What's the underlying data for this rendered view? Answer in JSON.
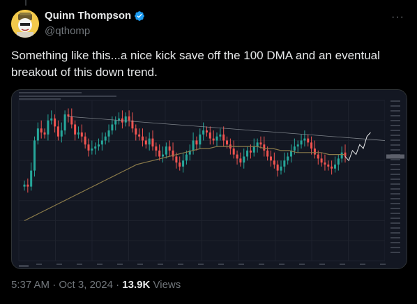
{
  "author": {
    "name": "Quinn Thompson",
    "handle": "@qthomp",
    "verified": true,
    "avatar_icon": "avatar-bitcoin-icon"
  },
  "tweet": {
    "text": "Something like this...a nice kick save off the 100 DMA and an eventual breakout of this down trend.",
    "time": "5:37 AM",
    "date": "Oct 3, 2024",
    "views_count": "13.9K",
    "views_label": "Views"
  },
  "colors": {
    "up": "#26a69a",
    "down": "#ef5350",
    "ma": "#8a7a4a",
    "trend": "#9aa0a6",
    "background": "#131722"
  },
  "chart_data": {
    "type": "candlestick",
    "title": "",
    "xlabel": "",
    "ylabel": "",
    "legend": "top-left",
    "grid": true,
    "approximate_close_series": [
      38,
      37,
      45,
      60,
      66,
      64,
      63,
      70,
      71,
      67,
      62,
      65,
      73,
      72,
      68,
      63,
      64,
      62,
      58,
      55,
      56,
      57,
      58,
      60,
      62,
      65,
      68,
      70,
      71,
      69,
      72,
      70,
      66,
      63,
      62,
      60,
      58,
      61,
      57,
      55,
      52,
      53,
      57,
      55,
      52,
      49,
      47,
      50,
      53,
      55,
      60,
      58,
      63,
      65,
      64,
      61,
      60,
      62,
      63,
      60,
      58,
      56,
      53,
      51,
      49,
      52,
      55,
      54,
      57,
      59,
      58,
      55,
      52,
      50,
      48,
      45,
      47,
      50,
      52,
      55,
      57,
      58,
      60,
      61,
      59,
      56,
      53,
      51,
      49,
      48,
      47,
      46,
      48,
      51,
      54,
      52
    ],
    "moving_average_100": [
      20,
      22,
      24,
      26,
      28,
      30,
      32,
      34,
      36,
      38,
      40,
      42,
      44,
      46,
      48,
      49,
      50,
      51,
      52,
      53,
      54,
      55,
      56,
      56,
      57,
      57,
      57,
      57,
      57,
      57,
      56,
      56,
      55,
      55,
      54,
      54,
      54,
      54,
      53,
      53,
      53
    ],
    "projection": [
      52,
      50,
      55,
      53,
      58,
      56,
      62,
      64
    ],
    "trendline": {
      "start": 72,
      "end": 60
    }
  }
}
